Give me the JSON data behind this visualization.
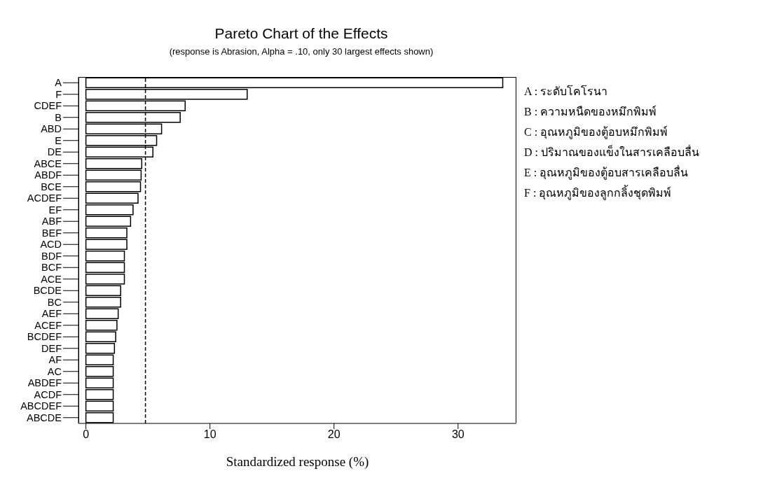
{
  "chart_data": {
    "type": "bar",
    "orientation": "horizontal",
    "title": "Pareto Chart of the Effects",
    "subtitle": "(response is Abrasion, Alpha = .10, only 30 largest effects shown)",
    "xlabel": "Standardized response (%)",
    "categories": [
      "A",
      "F",
      "CDEF",
      "B",
      "ABD",
      "E",
      "DE",
      "ABCE",
      "ABDF",
      "BCE",
      "ACDEF",
      "EF",
      "ABF",
      "BEF",
      "ACD",
      "BDF",
      "BCF",
      "ACE",
      "BCDE",
      "BC",
      "AEF",
      "ACEF",
      "BCDEF",
      "DEF",
      "AF",
      "AC",
      "ABDEF",
      "ACDF",
      "ABCDEF",
      "ABCDE"
    ],
    "values": [
      33.6,
      13.0,
      8.0,
      7.6,
      6.1,
      5.7,
      5.4,
      4.5,
      4.45,
      4.4,
      4.2,
      3.8,
      3.6,
      3.3,
      3.3,
      3.1,
      3.1,
      3.1,
      2.8,
      2.8,
      2.6,
      2.5,
      2.4,
      2.3,
      2.2,
      2.2,
      2.2,
      2.2,
      2.2,
      2.2
    ],
    "color": "#ffffff",
    "xlim": [
      -0.6,
      34.7
    ],
    "xticks": [
      0,
      10,
      20,
      30
    ],
    "ref_lines": [
      {
        "axis": "x",
        "value": 4.8,
        "line_style": "dashed"
      }
    ],
    "annotations": [
      "A : ระดับโคโรนา",
      "B : ความหนืดของหมึกพิมพ์",
      "C : อุณหภูมิของตู้อบหมึกพิมพ์",
      "D : ปริมาณของแข็งในสารเคลือบลื่น",
      "E : อุณหภูมิของตู้อบสารเคลือบลื่น",
      "F : อุณหภูมิของลูกกลิ้งชุดพิมพ์"
    ],
    "grid": false,
    "legend": false
  }
}
